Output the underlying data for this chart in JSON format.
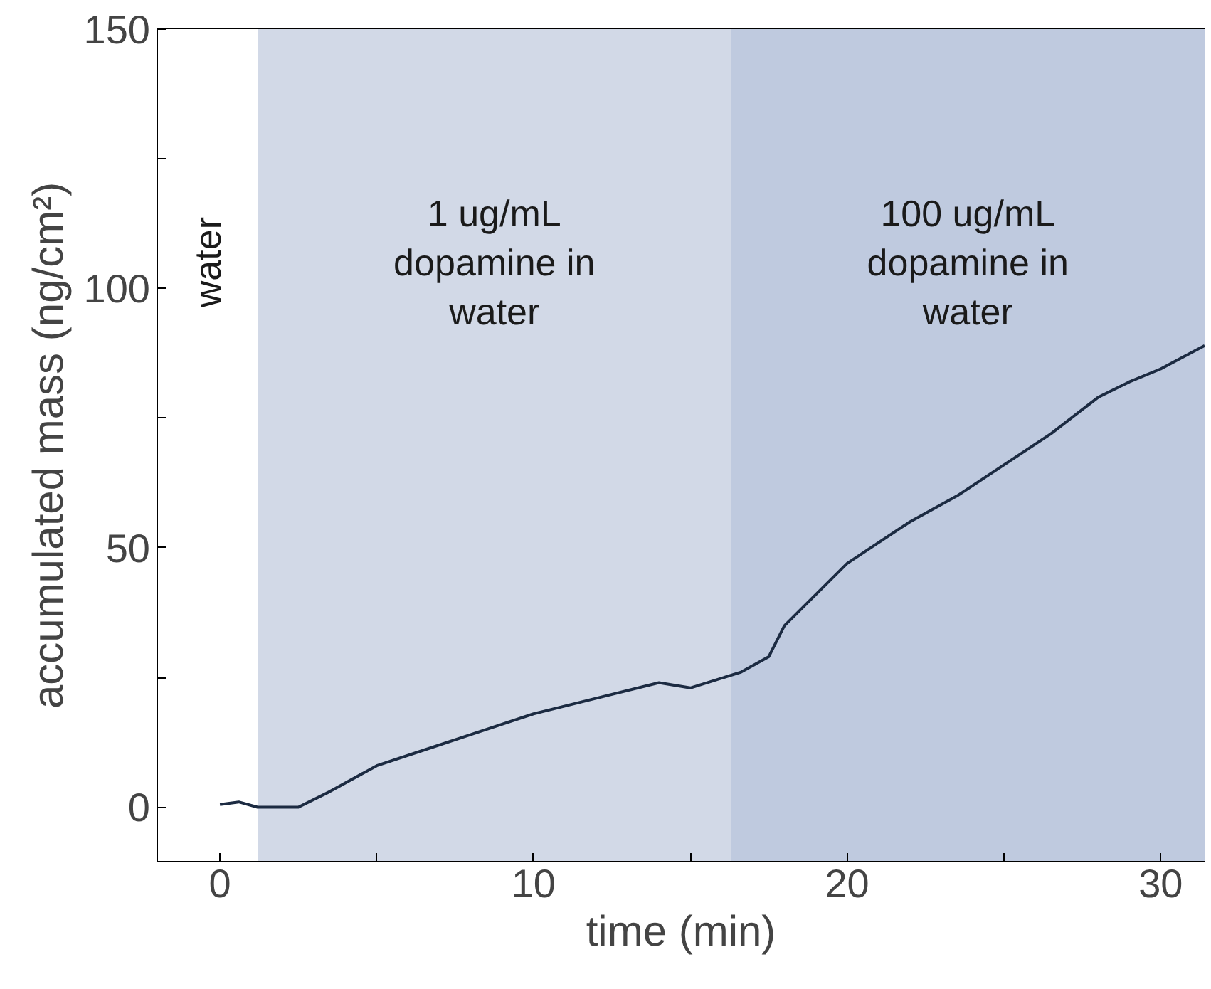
{
  "chart_data": {
    "type": "line",
    "xlabel": "time (min)",
    "ylabel": "accumulated mass (ng/cm²)",
    "xlim": [
      -2,
      31.4
    ],
    "ylim": [
      -10.5,
      150
    ],
    "xticks": [
      0,
      {
        "value": 5,
        "label": null
      },
      10,
      {
        "value": 15,
        "label": null
      },
      20,
      {
        "value": 25,
        "label": null
      },
      30
    ],
    "yticks": [
      0,
      {
        "value": 25,
        "label": null
      },
      50,
      {
        "value": 75,
        "label": null
      },
      100,
      {
        "value": 125,
        "label": null
      },
      150
    ],
    "grid": false,
    "marker": "none",
    "line_style": "solid",
    "bands": [
      {
        "axis": "x",
        "from": -2,
        "to": 1.2,
        "label": "water",
        "color": "#ffffff"
      },
      {
        "axis": "x",
        "from": 1.2,
        "to": 16.3,
        "label": "1 ug/mL\ndopamine in\nwater",
        "color": "#d2d9e7"
      },
      {
        "axis": "x",
        "from": 16.3,
        "to": 31.4,
        "label": "100 ug/mL\ndopamine in\nwater",
        "color": "#bfcadf"
      }
    ],
    "series": [
      {
        "color": "#1c2b42",
        "x": [
          0,
          0.6,
          1.2,
          2.5,
          3.5,
          5,
          6.5,
          8,
          10,
          12,
          14,
          15,
          16.6,
          17.5,
          18,
          19,
          20,
          21,
          22,
          23.5,
          25,
          26.5,
          28,
          29,
          30,
          31.4
        ],
        "values": [
          0.5,
          1,
          0,
          0,
          3,
          8,
          11,
          14,
          18,
          21,
          24,
          23,
          26,
          29,
          35,
          41,
          47,
          51,
          55,
          60,
          66,
          72,
          79,
          82,
          84.5,
          89
        ]
      }
    ]
  }
}
